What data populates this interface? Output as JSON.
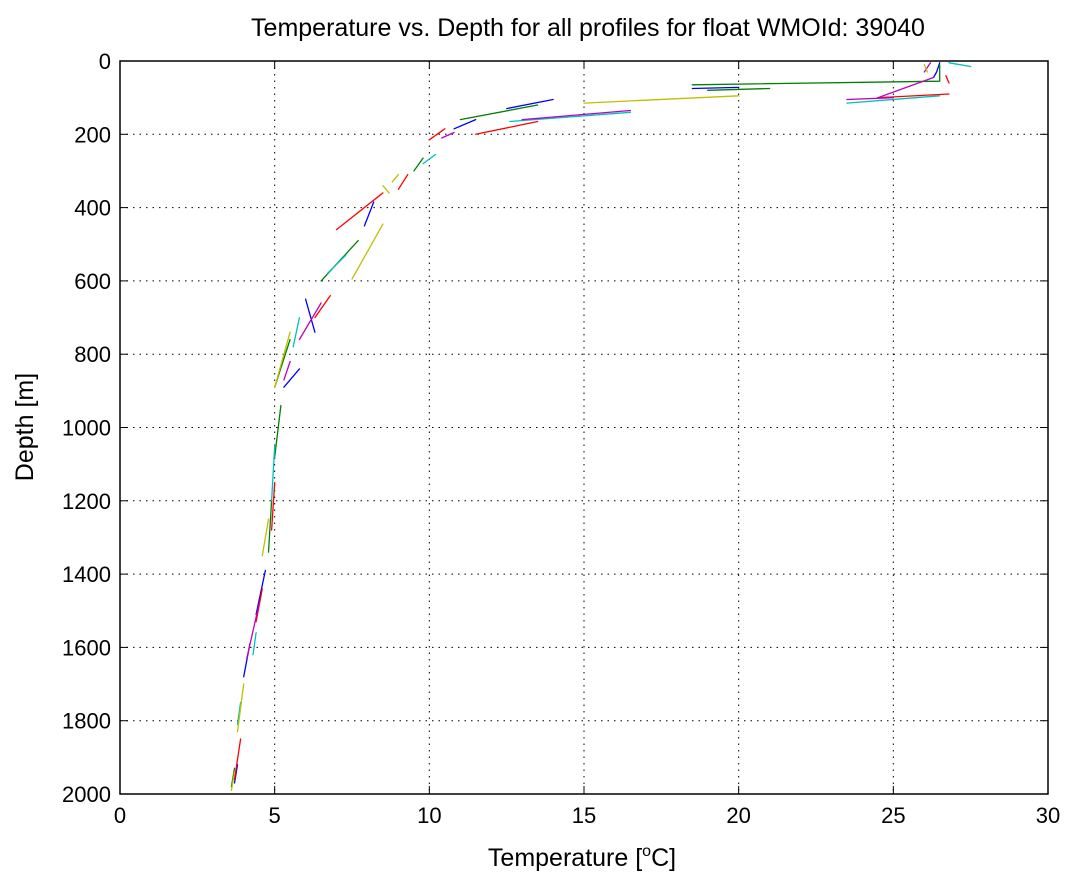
{
  "chart_data": {
    "type": "line",
    "title": "Temperature vs. Depth for all profiles for float WMOId: 39040",
    "xlabel_main": "Temperature [",
    "xlabel_sup": "o",
    "xlabel_end": "C]",
    "ylabel": "Depth [m]",
    "xlim": [
      0,
      30
    ],
    "ylim": [
      0,
      2000
    ],
    "y_reversed": true,
    "grid": true,
    "grid_style": "dotted",
    "xticks": [
      0,
      5,
      10,
      15,
      20,
      25,
      30
    ],
    "yticks": [
      0,
      200,
      400,
      600,
      800,
      1000,
      1200,
      1400,
      1600,
      1800,
      2000
    ],
    "colors": {
      "blue": "#0000ff",
      "green": "#008000",
      "red": "#ff0000",
      "cyan": "#00bfbf",
      "magenta": "#bf00bf",
      "yellow": "#bfbf00"
    },
    "series": [
      {
        "color": "#0000ff",
        "segments": [
          [
            [
              26.5,
              5
            ],
            [
              26.4,
              30
            ],
            [
              26.3,
              45
            ]
          ],
          [
            [
              18.5,
              75
            ],
            [
              20.0,
              72
            ]
          ],
          [
            [
              14.0,
              105
            ],
            [
              12.5,
              130
            ]
          ],
          [
            [
              11.5,
              160
            ],
            [
              10.8,
              185
            ]
          ],
          [
            [
              8.2,
              385
            ],
            [
              7.9,
              450
            ]
          ],
          [
            [
              6.3,
              740
            ],
            [
              6.0,
              650
            ]
          ],
          [
            [
              5.8,
              840
            ],
            [
              5.3,
              890
            ]
          ],
          [
            [
              4.7,
              1390
            ],
            [
              4.4,
              1510
            ]
          ],
          [
            [
              4.2,
              1590
            ],
            [
              4.0,
              1680
            ]
          ],
          [
            [
              3.8,
              1920
            ],
            [
              3.7,
              1970
            ]
          ]
        ]
      },
      {
        "color": "#008000",
        "segments": [
          [
            [
              18.5,
              65
            ],
            [
              26.5,
              55
            ],
            [
              26.5,
              10
            ]
          ],
          [
            [
              19.0,
              80
            ],
            [
              21.0,
              75
            ]
          ],
          [
            [
              13.5,
              120
            ],
            [
              11.0,
              160
            ]
          ],
          [
            [
              9.8,
              265
            ],
            [
              9.5,
              300
            ]
          ],
          [
            [
              6.5,
              600
            ],
            [
              7.7,
              490
            ]
          ],
          [
            [
              5.5,
              760
            ],
            [
              5.0,
              890
            ]
          ],
          [
            [
              5.2,
              940
            ],
            [
              5.0,
              1080
            ]
          ],
          [
            [
              4.9,
              1200
            ],
            [
              4.8,
              1340
            ]
          ],
          [
            [
              3.7,
              1930
            ],
            [
              3.6,
              1980
            ]
          ]
        ]
      },
      {
        "color": "#ff0000",
        "segments": [
          [
            [
              26.7,
              40
            ],
            [
              26.8,
              60
            ]
          ],
          [
            [
              24.5,
              100
            ],
            [
              26.8,
              90
            ]
          ],
          [
            [
              13.5,
              165
            ],
            [
              11.5,
              200
            ]
          ],
          [
            [
              10.5,
              185
            ],
            [
              10.0,
              215
            ]
          ],
          [
            [
              9.3,
              310
            ],
            [
              9.0,
              350
            ]
          ],
          [
            [
              8.5,
              360
            ],
            [
              7.0,
              460
            ]
          ],
          [
            [
              6.8,
              640
            ],
            [
              6.3,
              700
            ]
          ],
          [
            [
              5.0,
              1150
            ],
            [
              4.9,
              1280
            ]
          ],
          [
            [
              4.6,
              1440
            ],
            [
              4.4,
              1530
            ]
          ],
          [
            [
              3.9,
              1850
            ],
            [
              3.7,
              1960
            ]
          ]
        ]
      },
      {
        "color": "#00bfbf",
        "segments": [
          [
            [
              26.8,
              5
            ],
            [
              27.5,
              15
            ]
          ],
          [
            [
              23.5,
              115
            ],
            [
              26.5,
              95
            ]
          ],
          [
            [
              16.5,
              140
            ],
            [
              12.6,
              165
            ]
          ],
          [
            [
              10.2,
              255
            ],
            [
              9.8,
              280
            ]
          ],
          [
            [
              7.3,
              530
            ],
            [
              6.7,
              580
            ]
          ],
          [
            [
              5.8,
              700
            ],
            [
              5.6,
              780
            ]
          ],
          [
            [
              5.0,
              1050
            ],
            [
              4.9,
              1200
            ]
          ],
          [
            [
              4.4,
              1560
            ],
            [
              4.3,
              1620
            ]
          ],
          [
            [
              3.9,
              1750
            ],
            [
              3.8,
              1810
            ]
          ]
        ]
      },
      {
        "color": "#bf00bf",
        "segments": [
          [
            [
              26.2,
              5
            ],
            [
              26.0,
              30
            ]
          ],
          [
            [
              26.3,
              45
            ],
            [
              24.5,
              100
            ]
          ],
          [
            [
              23.5,
              105
            ],
            [
              25.0,
              100
            ]
          ],
          [
            [
              16.5,
              135
            ],
            [
              13.0,
              160
            ]
          ],
          [
            [
              10.8,
              195
            ],
            [
              10.4,
              210
            ]
          ],
          [
            [
              6.5,
              660
            ],
            [
              5.8,
              760
            ]
          ],
          [
            [
              5.5,
              820
            ],
            [
              5.3,
              870
            ]
          ],
          [
            [
              4.5,
              1480
            ],
            [
              4.1,
              1630
            ]
          ]
        ]
      },
      {
        "color": "#bfbf00",
        "segments": [
          [
            [
              26.0,
              10
            ],
            [
              26.1,
              30
            ]
          ],
          [
            [
              15.0,
              115
            ],
            [
              20.0,
              95
            ]
          ],
          [
            [
              8.5,
              445
            ],
            [
              7.5,
              595
            ]
          ],
          [
            [
              8.5,
              340
            ],
            [
              8.7,
              360
            ]
          ],
          [
            [
              9.0,
              310
            ],
            [
              8.8,
              330
            ]
          ],
          [
            [
              5.5,
              740
            ],
            [
              5.0,
              890
            ]
          ],
          [
            [
              4.8,
              1250
            ],
            [
              4.6,
              1350
            ]
          ],
          [
            [
              4.0,
              1700
            ],
            [
              3.8,
              1830
            ]
          ],
          [
            [
              3.7,
              1940
            ],
            [
              3.6,
              1990
            ]
          ]
        ]
      }
    ]
  }
}
